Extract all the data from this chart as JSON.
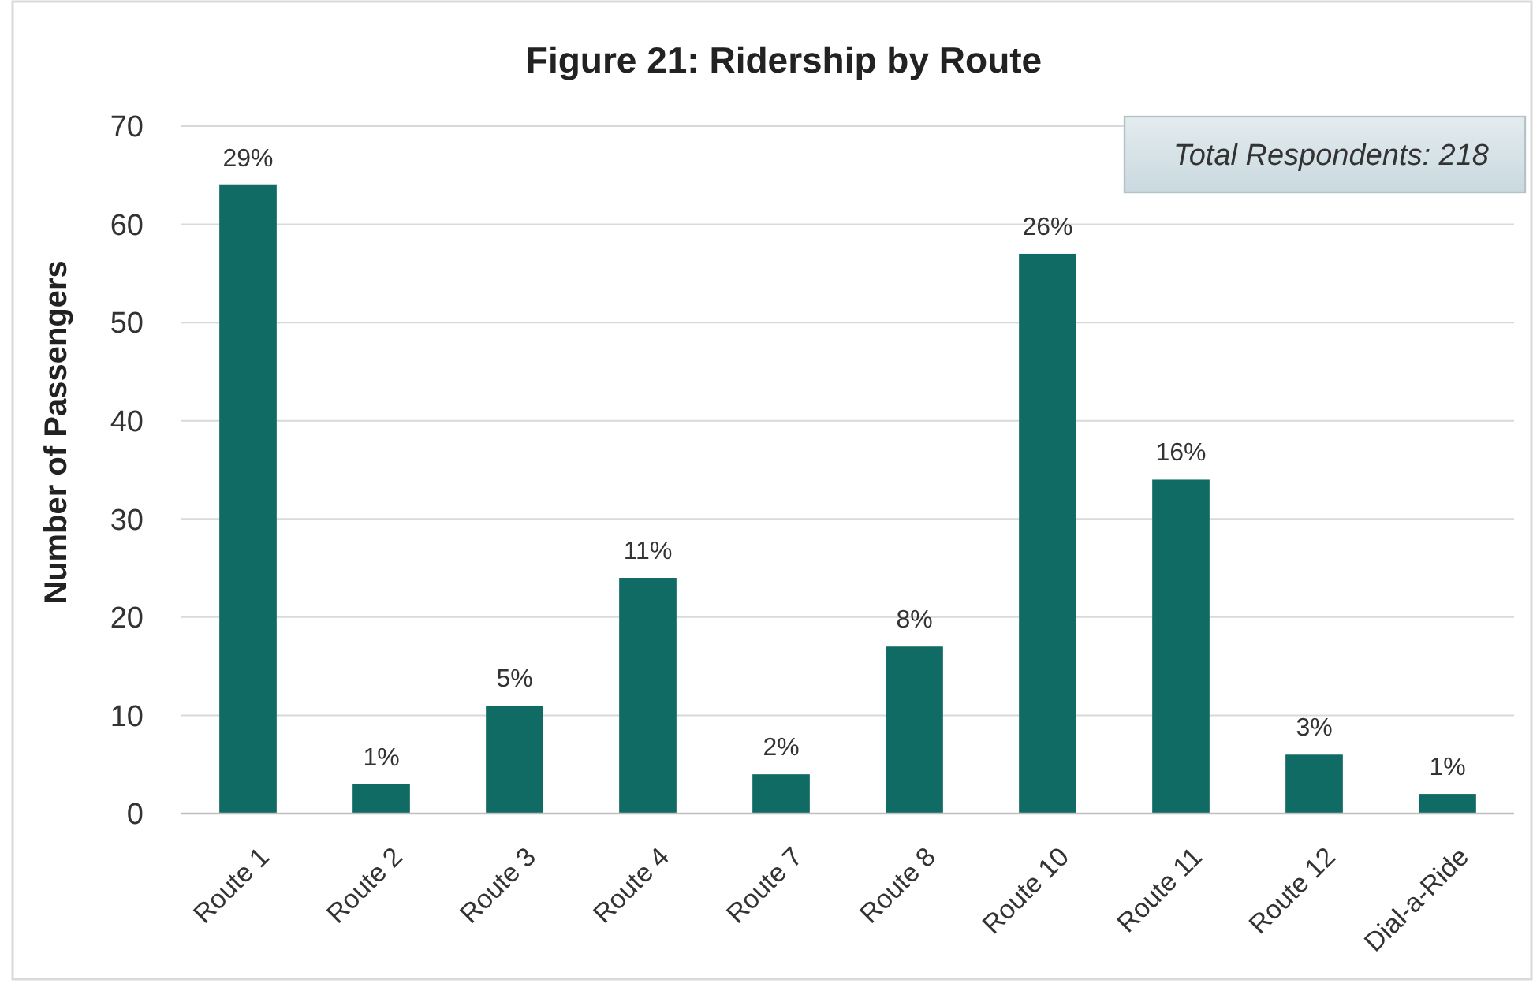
{
  "chart_data": {
    "type": "bar",
    "title": "Figure 21: Ridership by Route",
    "ylabel": "Number of Passengers",
    "categories": [
      "Route 1",
      "Route 2",
      "Route 3",
      "Route 4",
      "Route 7",
      "Route 8",
      "Route 10",
      "Route 11",
      "Route 12",
      "Dial-a-Ride"
    ],
    "values": [
      64,
      3,
      11,
      24,
      4,
      17,
      57,
      34,
      6,
      2
    ],
    "color": "#0f6b63",
    "ylim": [
      0,
      70
    ],
    "yticks": [
      0,
      10,
      20,
      30,
      40,
      50,
      60,
      70
    ],
    "grid": "y",
    "annotations": [
      "Total Respondents: 218",
      {
        "text": "29%",
        "x": "Route 1",
        "y": 64
      },
      {
        "text": "1%",
        "x": "Route 2",
        "y": 3
      },
      {
        "text": "5%",
        "x": "Route 3",
        "y": 11
      },
      {
        "text": "11%",
        "x": "Route 4",
        "y": 24
      },
      {
        "text": "2%",
        "x": "Route 7",
        "y": 4
      },
      {
        "text": "8%",
        "x": "Route 8",
        "y": 17
      },
      {
        "text": "26%",
        "x": "Route 10",
        "y": 57
      },
      {
        "text": "16%",
        "x": "Route 11",
        "y": 34
      },
      {
        "text": "3%",
        "x": "Route 12",
        "y": 6
      },
      {
        "text": "1%",
        "x": "Dial-a-Ride",
        "y": 2
      }
    ]
  }
}
